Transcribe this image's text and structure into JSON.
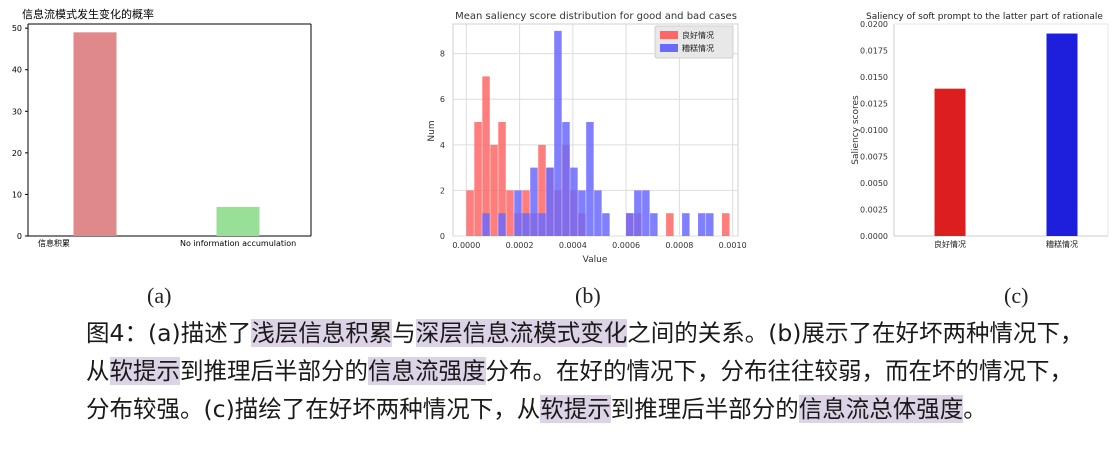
{
  "chart_data": [
    {
      "type": "bar",
      "title": "信息流模式发生变化的概率",
      "categories": [
        "信息积累",
        "No information accumulation"
      ],
      "values": [
        49,
        7
      ],
      "colors": [
        "#e0898b",
        "#98df98"
      ],
      "yticks": [
        "0",
        "10",
        "20",
        "30",
        "40",
        "50"
      ],
      "ylim": [
        0,
        51
      ],
      "grid": false
    },
    {
      "type": "histogram",
      "title": "Mean saliency score distribution for good and bad cases",
      "xlabel": "Value",
      "ylabel": "Num",
      "xticks": [
        "0.0000",
        "0.0002",
        "0.0004",
        "0.0006",
        "0.0008",
        "0.0010"
      ],
      "yticks": [
        "0",
        "2",
        "4",
        "6",
        "8"
      ],
      "xlim": [
        -5e-05,
        0.00102
      ],
      "ylim": [
        0,
        9.3
      ],
      "grid": true,
      "legend_position": "top-right",
      "series": [
        {
          "name": "良好情况",
          "color": "#ff6666",
          "bins": [
            {
              "x": 0.0,
              "count": 2
            },
            {
              "x": 3e-05,
              "count": 5
            },
            {
              "x": 6e-05,
              "count": 7
            },
            {
              "x": 9e-05,
              "count": 4
            },
            {
              "x": 0.00012,
              "count": 5
            },
            {
              "x": 0.00015,
              "count": 2
            },
            {
              "x": 0.00018,
              "count": 1
            },
            {
              "x": 0.00021,
              "count": 2
            },
            {
              "x": 0.00024,
              "count": 1
            },
            {
              "x": 0.00027,
              "count": 4
            },
            {
              "x": 0.0003,
              "count": 3
            },
            {
              "x": 0.00033,
              "count": 2
            },
            {
              "x": 0.00036,
              "count": 4
            },
            {
              "x": 0.00039,
              "count": 2
            },
            {
              "x": 0.00042,
              "count": 1
            },
            {
              "x": 0.0006,
              "count": 1
            },
            {
              "x": 0.00063,
              "count": 1
            },
            {
              "x": 0.00075,
              "count": 1
            },
            {
              "x": 0.00096,
              "count": 1
            }
          ]
        },
        {
          "name": "糟糕情况",
          "color": "#6a6aff",
          "bins": [
            {
              "x": 6e-05,
              "count": 1
            },
            {
              "x": 0.00012,
              "count": 1
            },
            {
              "x": 0.00018,
              "count": 2
            },
            {
              "x": 0.00021,
              "count": 1
            },
            {
              "x": 0.00024,
              "count": 3
            },
            {
              "x": 0.00027,
              "count": 1
            },
            {
              "x": 0.0003,
              "count": 3
            },
            {
              "x": 0.00033,
              "count": 9
            },
            {
              "x": 0.00036,
              "count": 5
            },
            {
              "x": 0.00039,
              "count": 3
            },
            {
              "x": 0.00042,
              "count": 2
            },
            {
              "x": 0.00045,
              "count": 5
            },
            {
              "x": 0.00048,
              "count": 2
            },
            {
              "x": 0.00051,
              "count": 1
            },
            {
              "x": 0.0006,
              "count": 1
            },
            {
              "x": 0.00063,
              "count": 2
            },
            {
              "x": 0.00066,
              "count": 2
            },
            {
              "x": 0.00069,
              "count": 1
            },
            {
              "x": 0.00081,
              "count": 1
            },
            {
              "x": 0.00087,
              "count": 1
            },
            {
              "x": 0.0009,
              "count": 1
            }
          ]
        }
      ]
    },
    {
      "type": "bar",
      "title": "Saliency of soft prompt to the latter part of rationale",
      "ylabel": "Saliency scores",
      "categories": [
        "良好情况",
        "糟糕情况"
      ],
      "values": [
        0.0139,
        0.0191
      ],
      "colors": [
        "#dd1e1e",
        "#1e1edd"
      ],
      "yticks": [
        "0.0000",
        "0.0025",
        "0.0050",
        "0.0075",
        "0.0100",
        "0.0125",
        "0.0150",
        "0.0175",
        "0.0200"
      ],
      "ylim": [
        0,
        0.02
      ],
      "grid": false
    }
  ],
  "sublabels": {
    "a": "(a)",
    "b": "(b)",
    "c": "(c)"
  },
  "caption": {
    "p1": "图4：(a)描述了",
    "h1": "浅层信息积累",
    "p2": "与",
    "h2": "深层信息流模式变化",
    "p3": "之间的关系。(b)展示了在好坏两种情况下，从",
    "h3": "软提示",
    "p4": "到推理后半部分的",
    "h4": "信息流强度",
    "p5": "分布。在好的情况下，分布往往较弱，而在坏的情况下，分布较强。(c)描绘了在好坏两种情况下，从",
    "h5": "软提示",
    "p6": "到推理后半部分的",
    "h6": "信息流总体强度",
    "p7": "。"
  }
}
